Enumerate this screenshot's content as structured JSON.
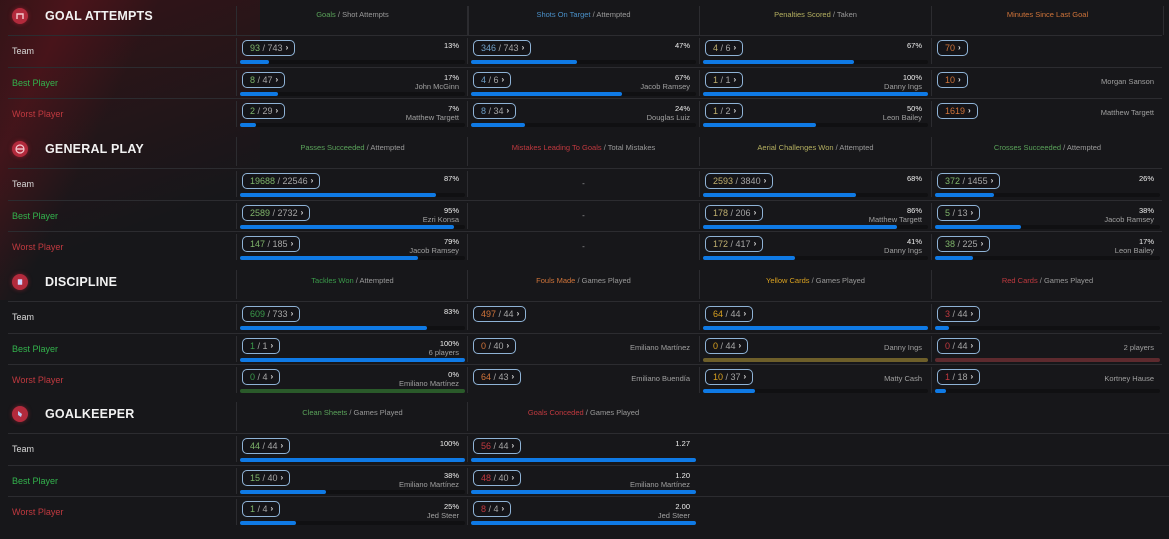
{
  "colors": {
    "bar_fill": "#0f7ae5",
    "pill_border": "#8fb3d6",
    "best_label": "#33b34d",
    "worst_label": "#c0393f",
    "icon_bg": "#b22a3c"
  },
  "row_labels": {
    "team": "Team",
    "best": "Best Player",
    "worst": "Worst Player"
  },
  "sections": [
    {
      "title": "GOAL ATTEMPTS",
      "icon": "goal-icon",
      "columns": [
        {
          "head_hl": "Goals",
          "head_rest": " / Shot Attempts",
          "hl_color": "#5aa35a",
          "num_color": "#7fb56a",
          "rows": [
            {
              "a": "93",
              "b": "743",
              "pct": "13%",
              "player": "",
              "fill": 0.13
            },
            {
              "a": "8",
              "b": "47",
              "pct": "17%",
              "player": "John McGinn",
              "fill": 0.17
            },
            {
              "a": "2",
              "b": "29",
              "pct": "7%",
              "player": "Matthew Targett",
              "fill": 0.07
            }
          ]
        },
        {
          "head_hl": "Shots On Target",
          "head_rest": " / Attempted",
          "hl_color": "#4a90c8",
          "num_color": "#6fa0c8",
          "rows": [
            {
              "a": "346",
              "b": "743",
              "pct": "47%",
              "player": "",
              "fill": 0.47
            },
            {
              "a": "4",
              "b": "6",
              "pct": "67%",
              "player": "Jacob Ramsey",
              "fill": 0.67
            },
            {
              "a": "8",
              "b": "34",
              "pct": "24%",
              "player": "Douglas Luiz",
              "fill": 0.24
            }
          ]
        },
        {
          "head_hl": "Penalties Scored",
          "head_rest": " / Taken",
          "hl_color": "#b5b060",
          "num_color": "#c0b070",
          "rows": [
            {
              "a": "4",
              "b": "6",
              "pct": "67%",
              "player": "",
              "fill": 0.67
            },
            {
              "a": "1",
              "b": "1",
              "pct": "100%",
              "player": "Danny Ings",
              "fill": 1.0
            },
            {
              "a": "1",
              "b": "2",
              "pct": "50%",
              "player": "Leon Bailey",
              "fill": 0.5
            }
          ]
        },
        {
          "head_hl": "Minutes Since Last Goal",
          "head_rest": "",
          "hl_color": "#d0743a",
          "num_color": "#d0743a",
          "single": true,
          "rows": [
            {
              "a": "70",
              "player": ""
            },
            {
              "a": "10",
              "player": "Morgan Sanson"
            },
            {
              "a": "1619",
              "player": "Matthew Targett"
            }
          ]
        }
      ]
    },
    {
      "title": "GENERAL PLAY",
      "icon": "play-icon",
      "columns": [
        {
          "head_hl": "Passes Succeeded",
          "head_rest": " / Attempted",
          "hl_color": "#5aa35a",
          "num_color": "#7fb56a",
          "rows": [
            {
              "a": "19688",
              "b": "22546",
              "pct": "87%",
              "player": "",
              "fill": 0.87
            },
            {
              "a": "2589",
              "b": "2732",
              "pct": "95%",
              "player": "Ezri Konsa",
              "fill": 0.95
            },
            {
              "a": "147",
              "b": "185",
              "pct": "79%",
              "player": "Jacob Ramsey",
              "fill": 0.79
            }
          ]
        },
        {
          "head_hl": "Mistakes Leading To Goals",
          "head_rest": " / Total Mistakes",
          "hl_color": "#c0393f",
          "num_color": "#c0393f",
          "empty": true,
          "rows": [
            {
              "dash": "-"
            },
            {
              "dash": "-"
            },
            {
              "dash": "-"
            }
          ]
        },
        {
          "head_hl": "Aerial Challenges Won",
          "head_rest": " / Attempted",
          "hl_color": "#b5b060",
          "num_color": "#c0b070",
          "rows": [
            {
              "a": "2593",
              "b": "3840",
              "pct": "68%",
              "player": "",
              "fill": 0.68
            },
            {
              "a": "178",
              "b": "206",
              "pct": "86%",
              "player": "Matthew Targett",
              "fill": 0.86
            },
            {
              "a": "172",
              "b": "417",
              "pct": "41%",
              "player": "Danny Ings",
              "fill": 0.41
            }
          ]
        },
        {
          "head_hl": "Crosses Succeeded",
          "head_rest": " / Attempted",
          "hl_color": "#5aa35a",
          "num_color": "#7fb56a",
          "rows": [
            {
              "a": "372",
              "b": "1455",
              "pct": "26%",
              "player": "",
              "fill": 0.26
            },
            {
              "a": "5",
              "b": "13",
              "pct": "38%",
              "player": "Jacob Ramsey",
              "fill": 0.38
            },
            {
              "a": "38",
              "b": "225",
              "pct": "17%",
              "player": "Leon Bailey",
              "fill": 0.17
            }
          ]
        }
      ]
    },
    {
      "title": "DISCIPLINE",
      "icon": "card-icon",
      "columns": [
        {
          "head_hl": "Tackles Won",
          "head_rest": " / Attempted",
          "hl_color": "#3a9a4a",
          "num_color": "#3a9a4a",
          "rows": [
            {
              "a": "609",
              "b": "733",
              "pct": "83%",
              "player": "",
              "fill": 0.83
            },
            {
              "a": "1",
              "b": "1",
              "pct": "100%",
              "player": "6 players",
              "fill": 1.0
            },
            {
              "a": "0",
              "b": "4",
              "pct": "0%",
              "player": "Emiliano Martínez",
              "fill": 0,
              "track_color": "#2a5a2a"
            }
          ]
        },
        {
          "head_hl": "Fouls Made",
          "head_rest": " / Games Played",
          "hl_color": "#d0743a",
          "num_color": "#d0743a",
          "nobar": true,
          "rows": [
            {
              "a": "497",
              "b": "44",
              "pct": "",
              "player": ""
            },
            {
              "a": "0",
              "b": "40",
              "pct": "",
              "player": "Emiliano Martínez"
            },
            {
              "a": "64",
              "b": "43",
              "pct": "",
              "player": "Emiliano Buendía"
            }
          ]
        },
        {
          "head_hl": "Yellow Cards",
          "head_rest": " / Games Played",
          "hl_color": "#d8a020",
          "num_color": "#d8a020",
          "rows": [
            {
              "a": "64",
              "b": "44",
              "pct": "",
              "player": "",
              "fill": 1.0
            },
            {
              "a": "0",
              "b": "44",
              "pct": "",
              "player": "Danny Ings",
              "fill": 0,
              "track_color": "#6e5f2a"
            },
            {
              "a": "10",
              "b": "37",
              "pct": "",
              "player": "Matty Cash",
              "fill": 0.23
            }
          ]
        },
        {
          "head_hl": "Red Cards",
          "head_rest": " / Games Played",
          "hl_color": "#c0393f",
          "num_color": "#c0393f",
          "rows": [
            {
              "a": "3",
              "b": "44",
              "pct": "",
              "player": "",
              "fill": 0.06
            },
            {
              "a": "0",
              "b": "44",
              "pct": "",
              "player": "2 players",
              "fill": 0,
              "track_color": "#5e2a2e"
            },
            {
              "a": "1",
              "b": "18",
              "pct": "",
              "player": "Kortney Hause",
              "fill": 0.05
            }
          ]
        }
      ]
    },
    {
      "title": "GOALKEEPER",
      "icon": "glove-icon",
      "columns": [
        {
          "head_hl": "Clean Sheets",
          "head_rest": " / Games Played",
          "hl_color": "#5aa35a",
          "num_color": "#7fb56a",
          "rows": [
            {
              "a": "44",
              "b": "44",
              "pct": "100%",
              "player": "",
              "fill": 1.0
            },
            {
              "a": "15",
              "b": "40",
              "pct": "38%",
              "player": "Emiliano Martínez",
              "fill": 0.38
            },
            {
              "a": "1",
              "b": "4",
              "pct": "25%",
              "player": "Jed Steer",
              "fill": 0.25
            }
          ]
        },
        {
          "head_hl": "Goals Conceded",
          "head_rest": " / Games Played",
          "hl_color": "#c0393f",
          "num_color": "#c0393f",
          "rows": [
            {
              "a": "56",
              "b": "44",
              "pct": "1.27",
              "player": "",
              "fill": 1.0
            },
            {
              "a": "48",
              "b": "40",
              "pct": "1.20",
              "player": "Emiliano Martínez",
              "fill": 1.0
            },
            {
              "a": "8",
              "b": "4",
              "pct": "2.00",
              "player": "Jed Steer",
              "fill": 1.0
            }
          ]
        }
      ]
    }
  ]
}
